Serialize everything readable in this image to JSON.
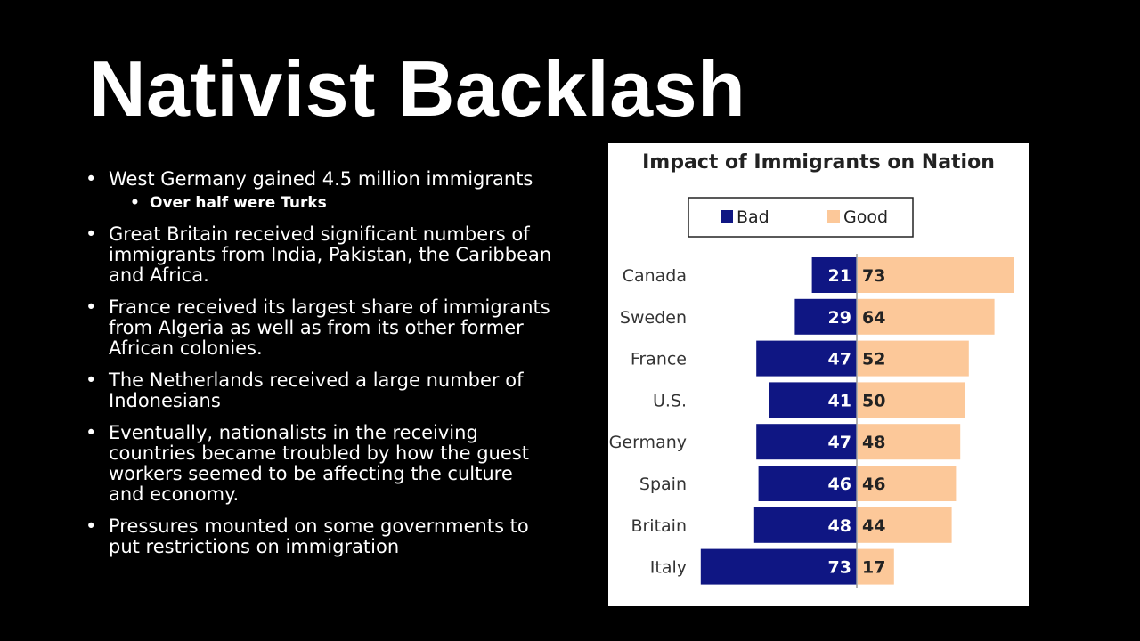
{
  "slide": {
    "title": "Nativist Backlash",
    "bullets": [
      {
        "text": "West Germany gained 4.5 million immigrants",
        "sub": [
          "Over half were Turks"
        ]
      },
      {
        "text": "Great Britain received significant numbers of immigrants from India, Pakistan, the Caribbean and Africa.",
        "sub": []
      },
      {
        "text": "France received its largest share of immigrants from Algeria as well as from its other former African colonies.",
        "sub": []
      },
      {
        "text": "The Netherlands received a large number of Indonesians",
        "sub": []
      },
      {
        "text": "Eventually, nationalists in the receiving countries became troubled by how the guest workers   seemed to be affecting the culture and economy.",
        "sub": []
      },
      {
        "text": "Pressures mounted on some governments to put restrictions on immigration",
        "sub": []
      }
    ]
  },
  "chart_data": {
    "type": "bar",
    "orientation": "horizontal-diverging",
    "title": "Impact of Immigrants on Nation",
    "categories": [
      "Canada",
      "Sweden",
      "France",
      "U.S.",
      "Germany",
      "Spain",
      "Britain",
      "Italy"
    ],
    "series": [
      {
        "name": "Bad",
        "color": "#0f1683",
        "values": [
          21,
          29,
          47,
          41,
          47,
          46,
          48,
          73
        ]
      },
      {
        "name": "Good",
        "color": "#fcc899",
        "values": [
          73,
          64,
          52,
          50,
          48,
          46,
          44,
          17
        ]
      }
    ],
    "legend": "top",
    "grid": false
  }
}
